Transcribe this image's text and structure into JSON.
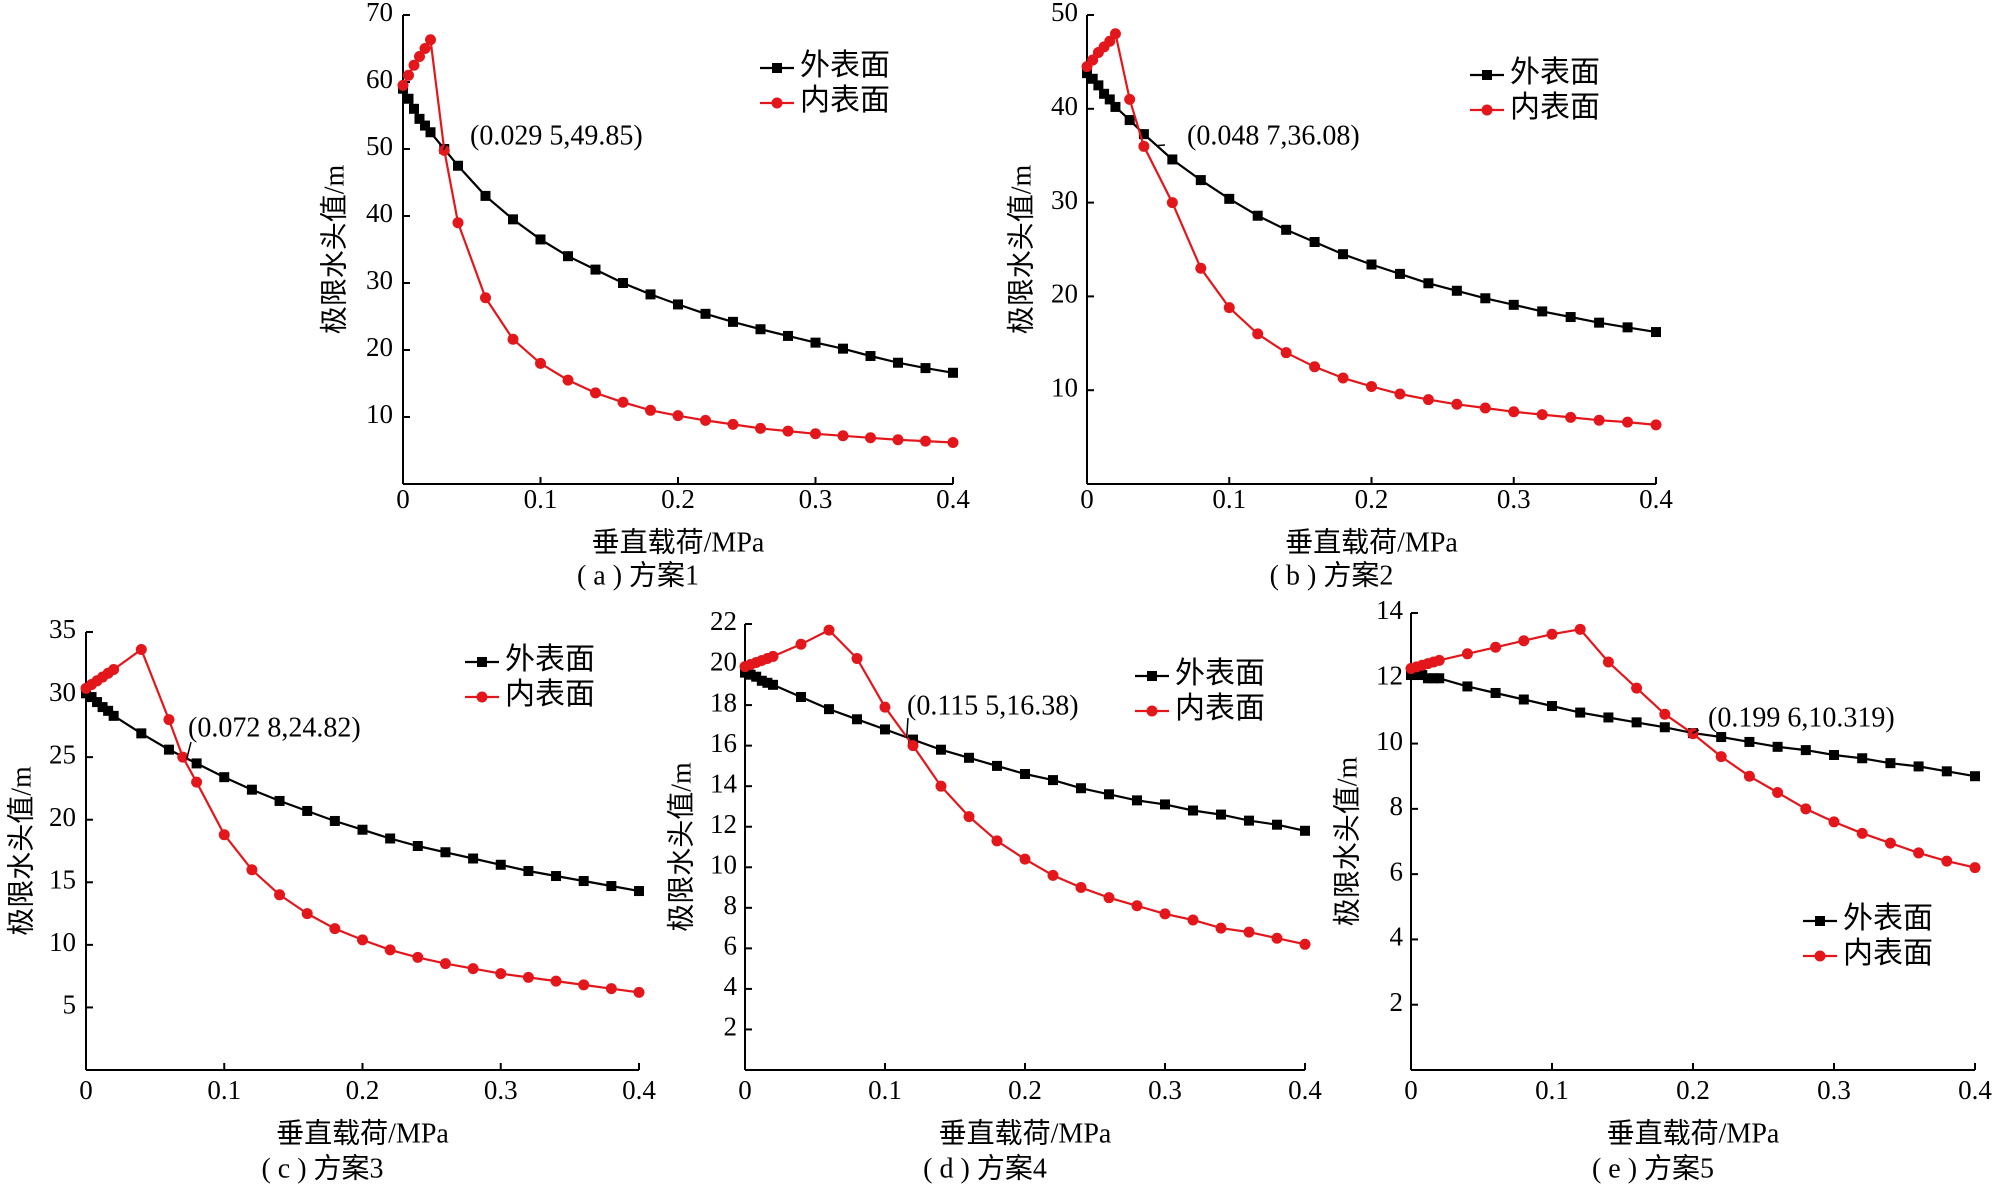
{
  "chart_data": [
    {
      "type": "line",
      "caption": "( a ) 方案1",
      "xlabel": "垂直载荷/MPa",
      "ylabel": "极限水头值/m",
      "xlim": [
        0,
        0.4
      ],
      "ylim": [
        0,
        70
      ],
      "xticks": [
        "0",
        "0.1",
        "0.2",
        "0.3",
        "0.4"
      ],
      "yticks": [
        "10",
        "20",
        "30",
        "40",
        "50",
        "60",
        "70"
      ],
      "legend": "top-right",
      "annotation": {
        "label": "(0.029 5,49.85)",
        "x": 0.0295,
        "y": 49.85
      },
      "series": [
        {
          "name": "外表面",
          "color": "#000000",
          "marker": "square",
          "x": [
            0,
            0.004,
            0.008,
            0.012,
            0.016,
            0.02,
            0.03,
            0.04,
            0.06,
            0.08,
            0.1,
            0.12,
            0.14,
            0.16,
            0.18,
            0.2,
            0.22,
            0.24,
            0.26,
            0.28,
            0.3,
            0.32,
            0.34,
            0.36,
            0.38,
            0.4
          ],
          "y": [
            59,
            57.5,
            56,
            54.5,
            53.5,
            52.5,
            50,
            47.5,
            43,
            39.5,
            36.5,
            34,
            32,
            30,
            28.3,
            26.8,
            25.4,
            24.2,
            23.1,
            22.1,
            21.1,
            20.2,
            19.1,
            18.1,
            17.3,
            16.6
          ]
        },
        {
          "name": "内表面",
          "color": "#e3161b",
          "marker": "circle",
          "x": [
            0,
            0.004,
            0.008,
            0.012,
            0.016,
            0.02,
            0.03,
            0.04,
            0.06,
            0.08,
            0.1,
            0.12,
            0.14,
            0.16,
            0.18,
            0.2,
            0.22,
            0.24,
            0.26,
            0.28,
            0.3,
            0.32,
            0.34,
            0.36,
            0.38,
            0.4
          ],
          "y": [
            59.5,
            61,
            62.5,
            63.8,
            65,
            66.3,
            49.8,
            39,
            27.8,
            21.6,
            18,
            15.5,
            13.6,
            12.2,
            11,
            10.2,
            9.5,
            8.9,
            8.3,
            7.9,
            7.5,
            7.2,
            6.9,
            6.6,
            6.4,
            6.2
          ]
        }
      ]
    },
    {
      "type": "line",
      "caption": "( b ) 方案2",
      "xlabel": "垂直载荷/MPa",
      "ylabel": "极限水头值/m",
      "xlim": [
        0,
        0.4
      ],
      "ylim": [
        0,
        50
      ],
      "xticks": [
        "0",
        "0.1",
        "0.2",
        "0.3",
        "0.4"
      ],
      "yticks": [
        "10",
        "20",
        "30",
        "40",
        "50"
      ],
      "legend": "top-right",
      "annotation": {
        "label": "(0.048 7,36.08)",
        "x": 0.0487,
        "y": 36.08
      },
      "series": [
        {
          "name": "外表面",
          "color": "#000000",
          "marker": "square",
          "x": [
            0,
            0.004,
            0.008,
            0.012,
            0.016,
            0.02,
            0.03,
            0.04,
            0.06,
            0.08,
            0.1,
            0.12,
            0.14,
            0.16,
            0.18,
            0.2,
            0.22,
            0.24,
            0.26,
            0.28,
            0.3,
            0.32,
            0.34,
            0.36,
            0.38,
            0.4
          ],
          "y": [
            43.8,
            43.2,
            42.5,
            41.6,
            41,
            40.2,
            38.8,
            37.3,
            34.6,
            32.4,
            30.4,
            28.6,
            27.1,
            25.8,
            24.5,
            23.4,
            22.4,
            21.4,
            20.6,
            19.8,
            19.1,
            18.4,
            17.8,
            17.2,
            16.7,
            16.2
          ]
        },
        {
          "name": "内表面",
          "color": "#e3161b",
          "marker": "circle",
          "x": [
            0,
            0.004,
            0.008,
            0.012,
            0.016,
            0.02,
            0.03,
            0.04,
            0.06,
            0.08,
            0.1,
            0.12,
            0.14,
            0.16,
            0.18,
            0.2,
            0.22,
            0.24,
            0.26,
            0.28,
            0.3,
            0.32,
            0.34,
            0.36,
            0.38,
            0.4
          ],
          "y": [
            44.5,
            45.2,
            46,
            46.6,
            47.2,
            48,
            41,
            36,
            30,
            23,
            18.8,
            16,
            14,
            12.5,
            11.3,
            10.4,
            9.6,
            9,
            8.5,
            8.1,
            7.7,
            7.4,
            7.1,
            6.8,
            6.6,
            6.3
          ]
        }
      ]
    },
    {
      "type": "line",
      "caption": "( c ) 方案3",
      "xlabel": "垂直载荷/MPa",
      "ylabel": "极限水头值/m",
      "xlim": [
        0,
        0.4
      ],
      "ylim": [
        0,
        35
      ],
      "xticks": [
        "0",
        "0.1",
        "0.2",
        "0.3",
        "0.4"
      ],
      "yticks": [
        "5",
        "10",
        "15",
        "20",
        "25",
        "30",
        "35"
      ],
      "legend": "top-right",
      "annotation": {
        "label": "(0.072 8,24.82)",
        "x": 0.0728,
        "y": 24.82
      },
      "series": [
        {
          "name": "外表面",
          "color": "#000000",
          "marker": "square",
          "x": [
            0,
            0.004,
            0.008,
            0.012,
            0.016,
            0.02,
            0.04,
            0.06,
            0.08,
            0.1,
            0.12,
            0.14,
            0.16,
            0.18,
            0.2,
            0.22,
            0.24,
            0.26,
            0.28,
            0.3,
            0.32,
            0.34,
            0.36,
            0.38,
            0.4
          ],
          "y": [
            30.1,
            29.8,
            29.4,
            29,
            28.7,
            28.3,
            26.9,
            25.6,
            24.5,
            23.4,
            22.4,
            21.5,
            20.7,
            19.9,
            19.2,
            18.5,
            17.9,
            17.4,
            16.9,
            16.4,
            15.9,
            15.5,
            15.1,
            14.7,
            14.3
          ]
        },
        {
          "name": "内表面",
          "color": "#e3161b",
          "marker": "circle",
          "x": [
            0,
            0.004,
            0.008,
            0.012,
            0.016,
            0.02,
            0.04,
            0.06,
            0.07,
            0.08,
            0.1,
            0.12,
            0.14,
            0.16,
            0.18,
            0.2,
            0.22,
            0.24,
            0.26,
            0.28,
            0.3,
            0.32,
            0.34,
            0.36,
            0.38,
            0.4
          ],
          "y": [
            30.5,
            30.8,
            31.1,
            31.4,
            31.7,
            32,
            33.6,
            28,
            25,
            23,
            18.8,
            16,
            14,
            12.5,
            11.3,
            10.4,
            9.6,
            9,
            8.5,
            8.1,
            7.7,
            7.4,
            7.1,
            6.8,
            6.5,
            6.2
          ]
        }
      ]
    },
    {
      "type": "line",
      "caption": "( d ) 方案4",
      "xlabel": "垂直载荷/MPa",
      "ylabel": "极限水头值/m",
      "xlim": [
        0,
        0.4
      ],
      "ylim": [
        0,
        22
      ],
      "xticks": [
        "0",
        "0.1",
        "0.2",
        "0.3",
        "0.4"
      ],
      "yticks": [
        "2",
        "4",
        "6",
        "8",
        "10",
        "12",
        "14",
        "16",
        "18",
        "20",
        "22"
      ],
      "legend": "top-right",
      "annotation": {
        "label": "(0.115 5,16.38)",
        "x": 0.1155,
        "y": 16.38
      },
      "series": [
        {
          "name": "外表面",
          "color": "#000000",
          "marker": "square",
          "x": [
            0,
            0.004,
            0.008,
            0.012,
            0.016,
            0.02,
            0.04,
            0.06,
            0.08,
            0.1,
            0.12,
            0.14,
            0.16,
            0.18,
            0.2,
            0.22,
            0.24,
            0.26,
            0.28,
            0.3,
            0.32,
            0.34,
            0.36,
            0.38,
            0.4
          ],
          "y": [
            19.6,
            19.5,
            19.4,
            19.2,
            19.1,
            19,
            18.4,
            17.8,
            17.3,
            16.8,
            16.3,
            15.8,
            15.4,
            15,
            14.6,
            14.3,
            13.9,
            13.6,
            13.3,
            13.1,
            12.8,
            12.6,
            12.3,
            12.1,
            11.8
          ]
        },
        {
          "name": "内表面",
          "color": "#e3161b",
          "marker": "circle",
          "x": [
            0,
            0.004,
            0.008,
            0.012,
            0.016,
            0.02,
            0.04,
            0.06,
            0.08,
            0.1,
            0.12,
            0.14,
            0.16,
            0.18,
            0.2,
            0.22,
            0.24,
            0.26,
            0.28,
            0.3,
            0.32,
            0.34,
            0.36,
            0.38,
            0.4
          ],
          "y": [
            19.9,
            20,
            20.1,
            20.2,
            20.3,
            20.4,
            21,
            21.7,
            20.3,
            17.9,
            16,
            14,
            12.5,
            11.3,
            10.4,
            9.6,
            9,
            8.5,
            8.1,
            7.7,
            7.4,
            7,
            6.8,
            6.5,
            6.2
          ]
        }
      ]
    },
    {
      "type": "line",
      "caption": "( e ) 方案5",
      "xlabel": "垂直载荷/MPa",
      "ylabel": "极限水头值/m",
      "xlim": [
        0,
        0.4
      ],
      "ylim": [
        0,
        14
      ],
      "xticks": [
        "0",
        "0.1",
        "0.2",
        "0.3",
        "0.4"
      ],
      "yticks": [
        "2",
        "4",
        "6",
        "8",
        "10",
        "12",
        "14"
      ],
      "legend": "bottom-right",
      "annotation": {
        "label": "(0.199 6,10.319)",
        "x": 0.1996,
        "y": 10.319
      },
      "series": [
        {
          "name": "外表面",
          "color": "#000000",
          "marker": "square",
          "x": [
            0,
            0.004,
            0.008,
            0.012,
            0.016,
            0.02,
            0.04,
            0.06,
            0.08,
            0.1,
            0.12,
            0.14,
            0.16,
            0.18,
            0.2,
            0.22,
            0.24,
            0.26,
            0.28,
            0.3,
            0.32,
            0.34,
            0.36,
            0.38,
            0.4
          ],
          "y": [
            12.1,
            12.1,
            12.1,
            12,
            12,
            12,
            11.75,
            11.55,
            11.35,
            11.15,
            10.95,
            10.8,
            10.65,
            10.5,
            10.32,
            10.2,
            10.05,
            9.9,
            9.8,
            9.65,
            9.55,
            9.4,
            9.3,
            9.15,
            9
          ]
        },
        {
          "name": "内表面",
          "color": "#e3161b",
          "marker": "circle",
          "x": [
            0,
            0.004,
            0.008,
            0.012,
            0.016,
            0.02,
            0.04,
            0.06,
            0.08,
            0.1,
            0.12,
            0.14,
            0.16,
            0.18,
            0.2,
            0.22,
            0.24,
            0.26,
            0.28,
            0.3,
            0.32,
            0.34,
            0.36,
            0.38,
            0.4
          ],
          "y": [
            12.3,
            12.35,
            12.4,
            12.45,
            12.5,
            12.55,
            12.75,
            12.95,
            13.15,
            13.35,
            13.5,
            12.5,
            11.7,
            10.9,
            10.3,
            9.6,
            9,
            8.5,
            8,
            7.6,
            7.25,
            6.95,
            6.65,
            6.4,
            6.2
          ]
        }
      ]
    }
  ]
}
